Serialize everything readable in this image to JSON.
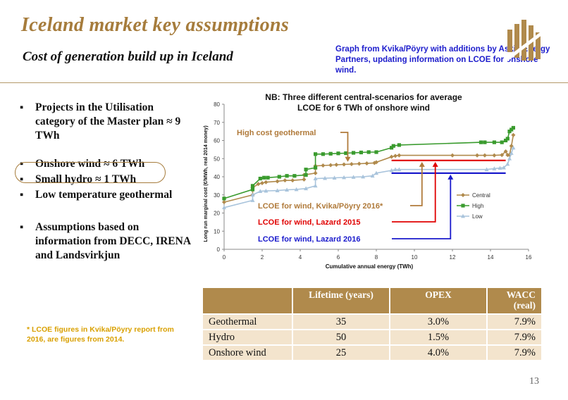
{
  "header": {
    "title": "Iceland market key assumptions",
    "subtitle": "Cost of generation build up in Iceland",
    "note": "Graph from Kvika/Pöyry with additions by Askja Energy Partners, updating information on LCOE for onshore wind."
  },
  "bullets": [
    "Projects in the Utilisation category of the Master plan ≈ 9 TWh",
    "Onshore wind ≈ 6 TWh",
    "Small hydro ≈ 1 TWh",
    "Low temperature geothermal",
    "Assumptions based on information from DECC, IRENA and Landsvirkjun"
  ],
  "footnote": "* LCOE figures in Kvika/Pöyry report from 2016, are figures from 2014.",
  "page_number": "13",
  "colors": {
    "title": "#a67c3c",
    "note": "#1c1ccc",
    "central": "#b08a4c",
    "high": "#3a9b2e",
    "low": "#a9c4dc",
    "lazard2015": "#e00000",
    "lazard2016": "#1a1acc",
    "geo_label": "#b07a3a",
    "table_header": "#b08a4c",
    "table_row": "#f3e4cd",
    "footnote": "#d9a000"
  },
  "chart_data": {
    "type": "line",
    "title": "NB: Three different central-scenarios for average LCOE for 6 TWh of onshore wind",
    "xlabel": "Cumulative annual energy (TWh)",
    "ylabel": "Long run marginal cost (€/MWh, real 2014 money)",
    "xlim": [
      0,
      16
    ],
    "ylim": [
      0,
      80
    ],
    "xticks": [
      0,
      2,
      4,
      6,
      8,
      10,
      12,
      14,
      16
    ],
    "yticks": [
      0,
      10,
      20,
      30,
      40,
      50,
      60,
      70,
      80
    ],
    "grid": false,
    "legend_position": "right",
    "series": [
      {
        "name": "Central",
        "marker": "diamond",
        "x": [
          0,
          1.5,
          1.5,
          1.8,
          2.0,
          2.2,
          2.8,
          3.2,
          3.6,
          4.2,
          4.2,
          4.8,
          4.8,
          5.2,
          5.6,
          5.9,
          6.3,
          6.7,
          7.1,
          7.5,
          7.9,
          8.0,
          8.8,
          9.0,
          9.2,
          12.0,
          13.3,
          13.7,
          14.2,
          14.6,
          14.8,
          14.9,
          15.0,
          15.1,
          15.2
        ],
        "y": [
          26,
          30,
          34,
          36,
          36.5,
          37,
          37.5,
          38,
          38,
          38.5,
          41,
          42,
          46,
          46.2,
          46.4,
          46.6,
          46.8,
          47,
          47.2,
          47.4,
          47.6,
          48,
          51,
          51.5,
          51.8,
          51.8,
          51.8,
          51.8,
          51.8,
          52,
          54,
          52,
          52,
          57,
          63
        ]
      },
      {
        "name": "High",
        "marker": "square",
        "x": [
          0,
          1.5,
          1.5,
          1.9,
          2.1,
          2.3,
          2.9,
          3.3,
          3.7,
          4.3,
          4.3,
          4.8,
          4.8,
          5.2,
          5.6,
          6.0,
          6.4,
          6.8,
          7.2,
          7.6,
          8.0,
          8.8,
          8.9,
          9.2,
          13.5,
          13.7,
          14.2,
          14.6,
          14.8,
          14.9,
          15.0,
          15.1,
          15.2
        ],
        "y": [
          28,
          33,
          35,
          39,
          39.5,
          39.5,
          40,
          40.5,
          40.5,
          41,
          44,
          45,
          52.5,
          52.5,
          52.7,
          52.9,
          53,
          53.2,
          53.4,
          53.6,
          53.6,
          56,
          57,
          57.5,
          59,
          59,
          59,
          59,
          60,
          61,
          65,
          66,
          67
        ]
      },
      {
        "name": "Low",
        "marker": "triangle",
        "x": [
          0,
          1.5,
          1.5,
          1.9,
          2.2,
          2.8,
          3.3,
          3.8,
          4.3,
          4.8,
          4.8,
          5.3,
          5.8,
          6.3,
          6.8,
          7.3,
          7.8,
          8.0,
          8.8,
          9.0,
          9.2,
          13.8,
          14.2,
          14.5,
          14.7,
          14.9,
          15.0,
          15.1,
          15.2
        ],
        "y": [
          23,
          27,
          30,
          32,
          32.2,
          32.4,
          32.8,
          33,
          33.5,
          35,
          39,
          39.2,
          39.4,
          39.6,
          39.8,
          40,
          40.5,
          42,
          43.5,
          44,
          44,
          44,
          44.5,
          44.8,
          45,
          47,
          50,
          53,
          56
        ]
      }
    ],
    "lazard_2015": {
      "x_range": [
        8.8,
        14.8
      ],
      "y": 49
    },
    "lazard_2016": {
      "x_range": [
        8.8,
        14.8
      ],
      "y": 42
    },
    "annotations": [
      {
        "text": "High cost geothermal",
        "target": {
          "x": 6.5,
          "y": 47.5
        }
      },
      {
        "text": "LCOE for wind, Kvika/Pöyry 2016*",
        "target": {
          "x": 10.4,
          "y": 49
        }
      },
      {
        "text": "LCOE for wind, Lazard 2015",
        "target": {
          "x": 11.1,
          "y": 49
        }
      },
      {
        "text": "LCOE for wind, Lazard 2016",
        "target": {
          "x": 11.9,
          "y": 42
        }
      }
    ]
  },
  "table": {
    "headers": [
      "",
      "Lifetime (years)",
      "OPEX",
      "WACC (real)"
    ],
    "rows": [
      {
        "name": "Geothermal",
        "lifetime": "35",
        "opex": "3.0%",
        "wacc": "7.9%"
      },
      {
        "name": "Hydro",
        "lifetime": "50",
        "opex": "1.5%",
        "wacc": "7.9%"
      },
      {
        "name": "Onshore wind",
        "lifetime": "25",
        "opex": "4.0%",
        "wacc": "7.9%"
      }
    ]
  }
}
